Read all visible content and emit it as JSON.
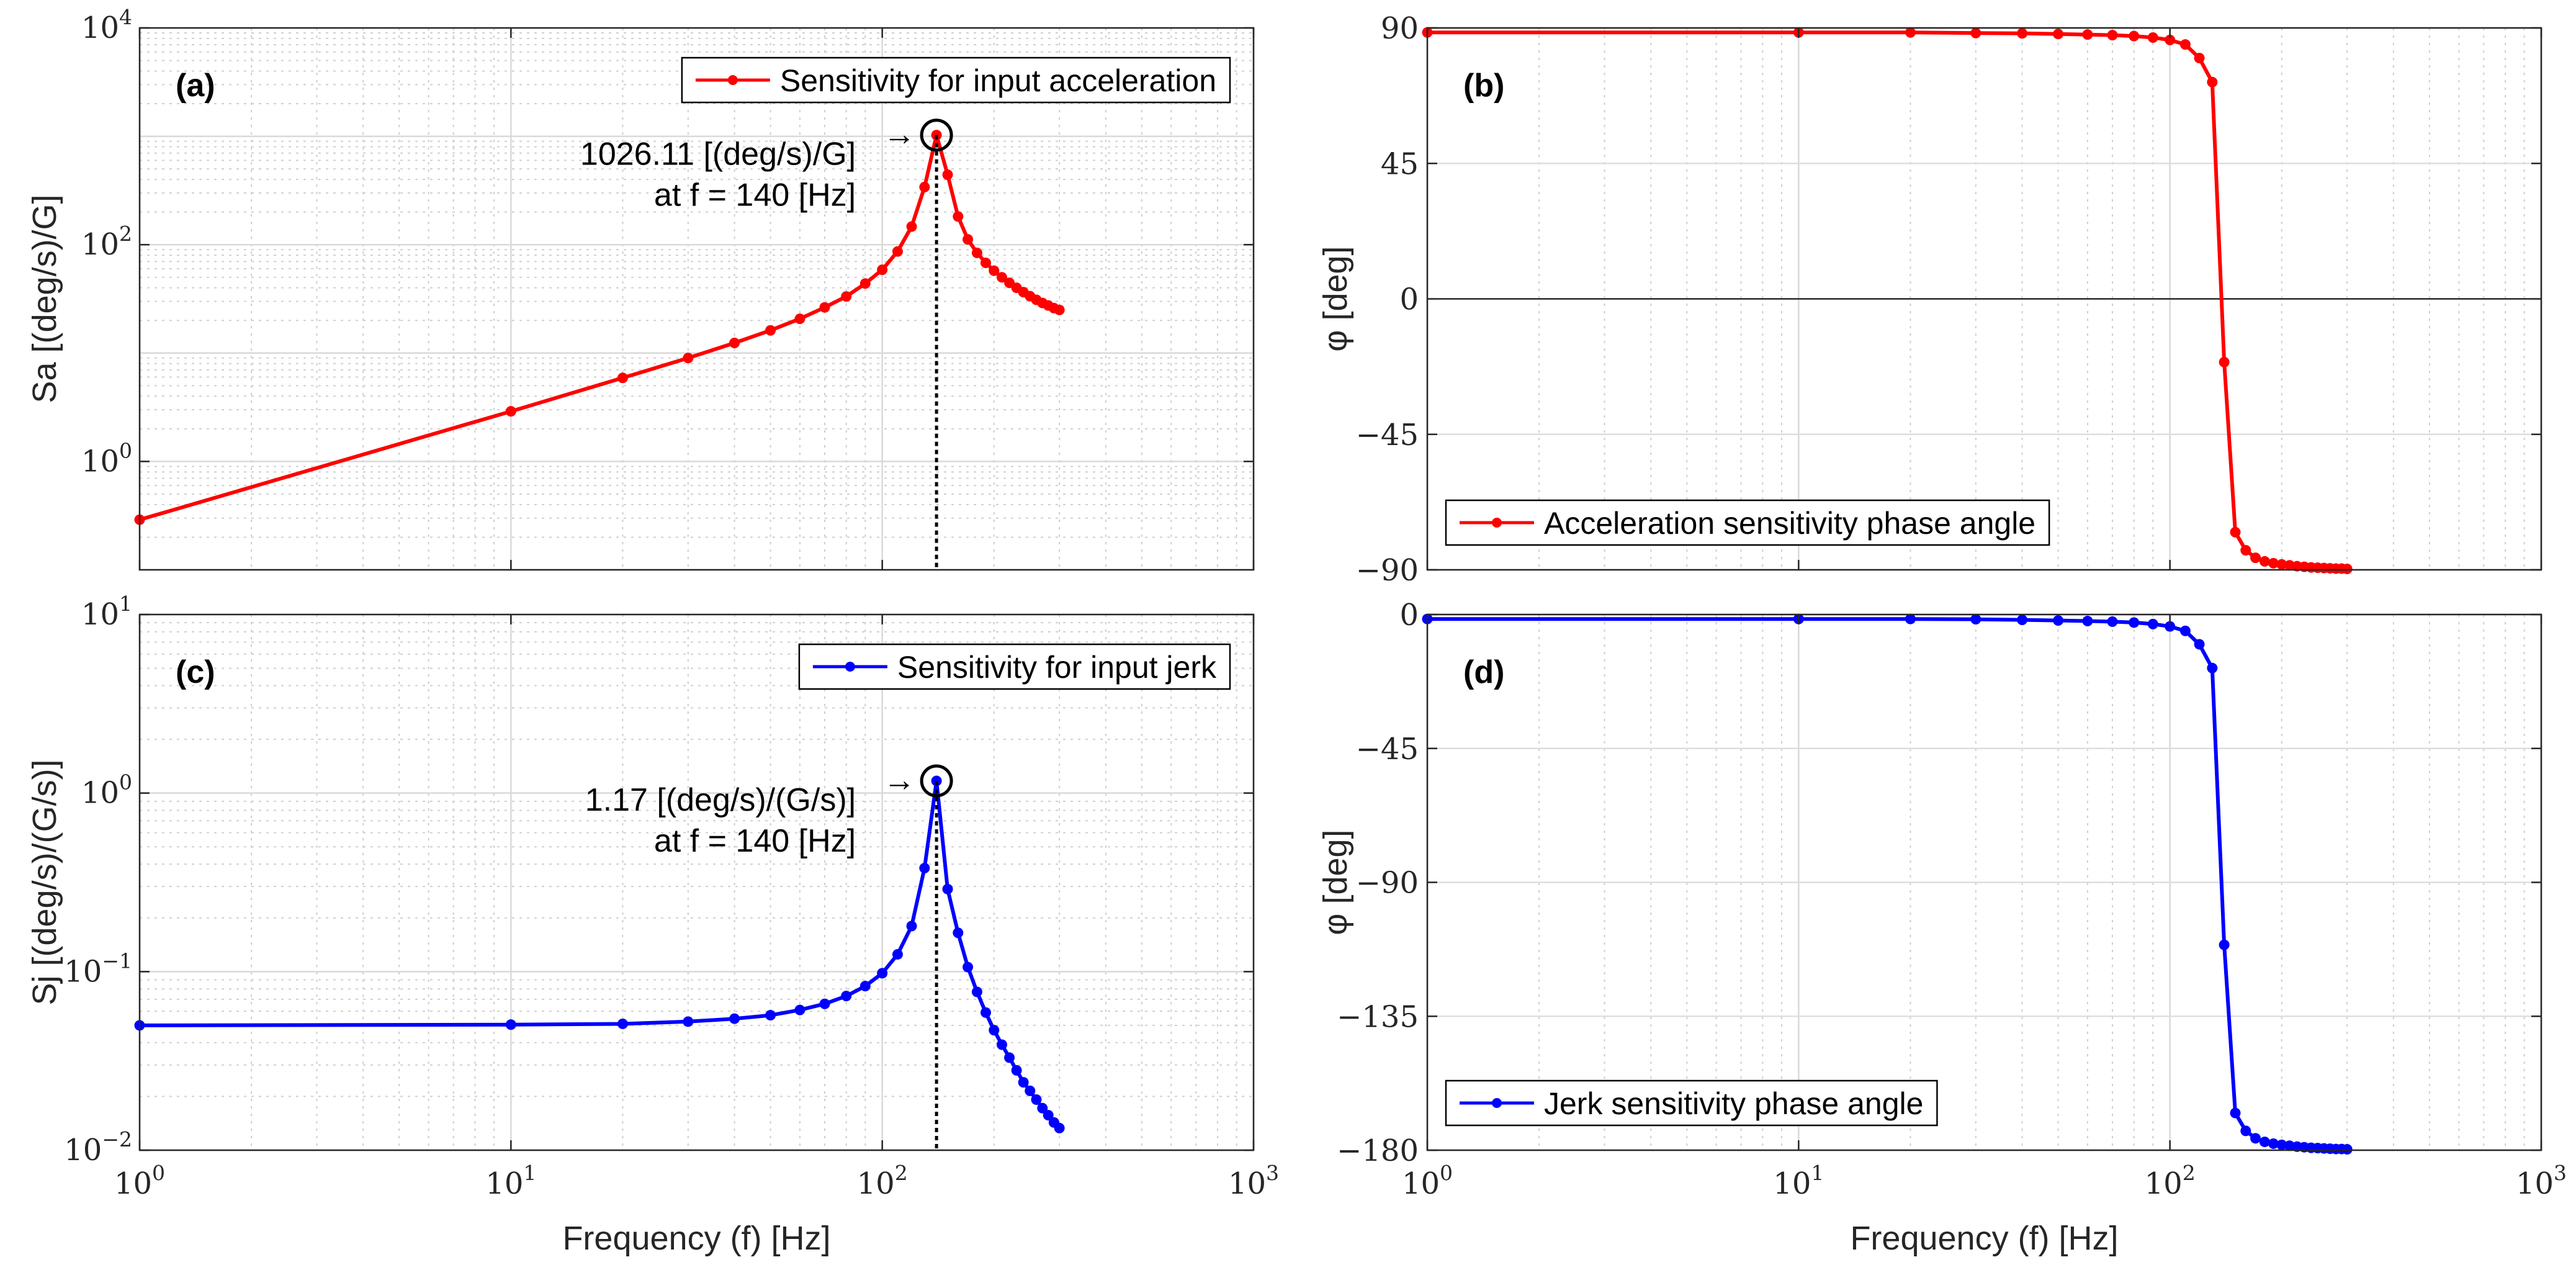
{
  "chart_data": [
    {
      "id": "a",
      "type": "line",
      "panel_label": "(a)",
      "xlabel": "",
      "ylabel": "Sa [(deg/s)/G]",
      "xscale": "log",
      "yscale": "log",
      "xlim": [
        1,
        1000
      ],
      "ylim": [
        0.1,
        10000
      ],
      "xticks": [],
      "yticks": [
        {
          "v": 1,
          "base": "10",
          "exp": "0"
        },
        {
          "v": 100,
          "base": "10",
          "exp": "2"
        },
        {
          "v": 10000,
          "base": "10",
          "exp": "4"
        }
      ],
      "grid": true,
      "minor_grid": true,
      "legend": {
        "label": "Sensitivity for input acceleration",
        "location": "top-right"
      },
      "series": [
        {
          "name": "Sensitivity for input acceleration",
          "color": "#ff0000",
          "x": [
            1,
            10,
            20,
            30,
            40,
            50,
            60,
            70,
            80,
            90,
            100,
            110,
            120,
            130,
            140,
            150,
            160,
            170,
            180,
            190,
            200,
            210,
            220,
            230,
            240,
            250,
            260,
            270,
            280,
            290,
            300
          ],
          "y": [
            0.29,
            2.9,
            5.9,
            9.0,
            12.4,
            16.2,
            20.7,
            26.4,
            33.3,
            43.8,
            58.7,
            86.6,
            147,
            340,
            1026.11,
            442,
            182,
            112,
            84,
            68,
            57.5,
            50,
            44.5,
            40,
            36.5,
            33.5,
            31,
            29,
            27.5,
            26,
            25
          ]
        }
      ],
      "peak": {
        "x": 140,
        "y": 1026.11
      },
      "annotation": {
        "line1": "1026.11 [(deg/s)/G]",
        "line2": "at f = 140 [Hz]",
        "arrow": "→"
      }
    },
    {
      "id": "b",
      "type": "line",
      "panel_label": "(b)",
      "xlabel": "",
      "ylabel": "φ [deg]",
      "xscale": "log",
      "yscale": "linear",
      "xlim": [
        1,
        1000
      ],
      "ylim": [
        -90,
        90
      ],
      "xticks": [],
      "yticks": [
        {
          "v": -90,
          "label": "−90"
        },
        {
          "v": -45,
          "label": "−45"
        },
        {
          "v": 0,
          "label": "0"
        },
        {
          "v": 45,
          "label": "45"
        },
        {
          "v": 90,
          "label": "90"
        }
      ],
      "grid": true,
      "minor_grid": true,
      "zero_line": true,
      "legend": {
        "label": "Acceleration sensitivity phase angle",
        "location": "bottom-left"
      },
      "series": [
        {
          "name": "Acceleration sensitivity phase angle",
          "color": "#ff0000",
          "x": [
            1,
            10,
            20,
            30,
            40,
            50,
            60,
            70,
            80,
            90,
            100,
            110,
            120,
            130,
            140,
            150,
            160,
            170,
            180,
            190,
            200,
            210,
            220,
            230,
            240,
            250,
            260,
            270,
            280,
            290,
            300
          ],
          "y": [
            88.5,
            88.5,
            88.5,
            88.3,
            88.2,
            88.0,
            87.8,
            87.6,
            87.3,
            86.8,
            86.0,
            84.5,
            80.0,
            72.0,
            -21.0,
            -77.5,
            -83.5,
            -86.0,
            -87.2,
            -87.8,
            -88.2,
            -88.5,
            -88.8,
            -89.0,
            -89.2,
            -89.3,
            -89.4,
            -89.5,
            -89.6,
            -89.6,
            -89.7
          ]
        }
      ]
    },
    {
      "id": "c",
      "type": "line",
      "panel_label": "(c)",
      "xlabel": "Frequency (f) [Hz]",
      "ylabel": "Sj [(deg/s)/(G/s)]",
      "xscale": "log",
      "yscale": "log",
      "xlim": [
        1,
        1000
      ],
      "ylim": [
        0.01,
        10
      ],
      "xticks": [
        {
          "v": 1,
          "base": "10",
          "exp": "0"
        },
        {
          "v": 10,
          "base": "10",
          "exp": "1"
        },
        {
          "v": 100,
          "base": "10",
          "exp": "2"
        },
        {
          "v": 1000,
          "base": "10",
          "exp": "3"
        }
      ],
      "yticks": [
        {
          "v": 0.01,
          "base": "10",
          "exp": "−2"
        },
        {
          "v": 0.1,
          "base": "10",
          "exp": "−1"
        },
        {
          "v": 1,
          "base": "10",
          "exp": "0"
        },
        {
          "v": 10,
          "base": "10",
          "exp": "1"
        }
      ],
      "grid": true,
      "minor_grid": true,
      "legend": {
        "label": "Sensitivity for input jerk",
        "location": "top-right"
      },
      "series": [
        {
          "name": "Sensitivity for input jerk",
          "color": "#0000ff",
          "x": [
            1,
            10,
            20,
            30,
            40,
            50,
            60,
            70,
            80,
            90,
            100,
            110,
            120,
            130,
            140,
            150,
            160,
            170,
            180,
            190,
            200,
            210,
            220,
            230,
            240,
            250,
            260,
            270,
            280,
            290,
            300
          ],
          "y": [
            0.05,
            0.0505,
            0.051,
            0.0525,
            0.0545,
            0.057,
            0.061,
            0.066,
            0.073,
            0.083,
            0.098,
            0.125,
            0.18,
            0.38,
            1.17,
            0.29,
            0.165,
            0.106,
            0.077,
            0.059,
            0.047,
            0.039,
            0.033,
            0.028,
            0.024,
            0.0215,
            0.0192,
            0.0172,
            0.0157,
            0.0143,
            0.0133
          ]
        }
      ],
      "peak": {
        "x": 140,
        "y": 1.17
      },
      "annotation": {
        "line1": "1.17 [(deg/s)/(G/s)]",
        "line2": "at f = 140 [Hz]",
        "arrow": "→"
      }
    },
    {
      "id": "d",
      "type": "line",
      "panel_label": "(d)",
      "xlabel": "Frequency (f) [Hz]",
      "ylabel": "φ [deg]",
      "xscale": "log",
      "yscale": "linear",
      "xlim": [
        1,
        1000
      ],
      "ylim": [
        -180,
        0
      ],
      "xticks": [
        {
          "v": 1,
          "base": "10",
          "exp": "0"
        },
        {
          "v": 10,
          "base": "10",
          "exp": "1"
        },
        {
          "v": 100,
          "base": "10",
          "exp": "2"
        },
        {
          "v": 1000,
          "base": "10",
          "exp": "3"
        }
      ],
      "yticks": [
        {
          "v": -180,
          "label": "−180"
        },
        {
          "v": -135,
          "label": "−135"
        },
        {
          "v": -90,
          "label": "−90"
        },
        {
          "v": -45,
          "label": "−45"
        },
        {
          "v": 0,
          "label": "0"
        }
      ],
      "grid": true,
      "minor_grid": true,
      "legend": {
        "label": "Jerk sensitivity phase angle",
        "location": "bottom-left"
      },
      "series": [
        {
          "name": "Jerk sensitivity phase angle",
          "color": "#0000ff",
          "x": [
            1,
            10,
            20,
            30,
            40,
            50,
            60,
            70,
            80,
            90,
            100,
            110,
            120,
            130,
            140,
            150,
            160,
            170,
            180,
            190,
            200,
            210,
            220,
            230,
            240,
            250,
            260,
            270,
            280,
            290,
            300
          ],
          "y": [
            -1.5,
            -1.5,
            -1.5,
            -1.6,
            -1.8,
            -2.0,
            -2.2,
            -2.4,
            -2.7,
            -3.2,
            -4.0,
            -5.5,
            -10.0,
            -18.0,
            -111.0,
            -167.5,
            -173.5,
            -176.0,
            -177.2,
            -177.8,
            -178.2,
            -178.5,
            -178.8,
            -179.0,
            -179.2,
            -179.3,
            -179.4,
            -179.5,
            -179.6,
            -179.6,
            -179.7
          ]
        }
      ]
    }
  ]
}
